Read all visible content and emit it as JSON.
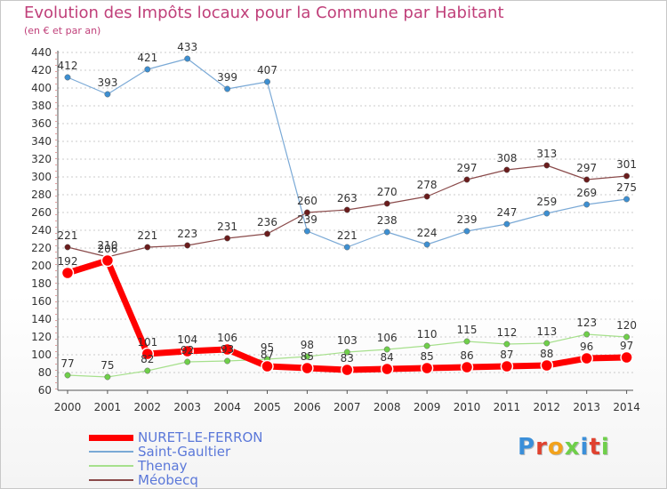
{
  "title": "Evolution des Impôts locaux pour la Commune par Habitant",
  "subtitle": "(en € et par an)",
  "logo_text": "Proxiti",
  "colors": {
    "title": "#c0407a",
    "legend_text": "#5b78d9",
    "grid": "#bbbbbb",
    "axis_text": "#333333"
  },
  "chart_data": {
    "type": "line",
    "title": "Evolution des Impôts locaux pour la Commune par Habitant",
    "subtitle": "(en € et par an)",
    "x": [
      "2000",
      "2001",
      "2002",
      "2003",
      "2004",
      "2005",
      "2006",
      "2007",
      "2008",
      "2009",
      "2010",
      "2011",
      "2012",
      "2013",
      "2014"
    ],
    "ylim": [
      60,
      440
    ],
    "yticks": [
      60,
      80,
      100,
      120,
      140,
      160,
      180,
      200,
      220,
      240,
      260,
      280,
      300,
      320,
      340,
      360,
      380,
      400,
      420,
      440
    ],
    "grid": "horizontal dashed",
    "legend_placement": "bottom-left",
    "series": [
      {
        "name": "Saint-Gaultier",
        "color": "#7aa9d6",
        "marker": "#3d8fd1",
        "width": 1.2,
        "values": [
          412,
          393,
          421,
          433,
          399,
          407,
          239,
          221,
          238,
          224,
          239,
          247,
          259,
          269,
          275
        ]
      },
      {
        "name": "Thenay",
        "color": "#a6e08c",
        "marker": "#6fcf4a",
        "width": 1.2,
        "values": [
          77,
          75,
          82,
          92,
          93,
          95,
          98,
          103,
          106,
          110,
          115,
          112,
          113,
          123,
          120
        ]
      },
      {
        "name": "Méobecq",
        "color": "#8a4a4a",
        "marker": "#6a1c1c",
        "width": 1.2,
        "values": [
          221,
          210,
          221,
          223,
          231,
          236,
          260,
          263,
          270,
          278,
          297,
          308,
          313,
          297,
          301
        ]
      },
      {
        "name": "NURET-LE-FERRON",
        "color": "#ff0000",
        "marker": "#ff0000",
        "width": 7,
        "values": [
          192,
          206,
          101,
          104,
          106,
          87,
          85,
          83,
          84,
          85,
          86,
          87,
          88,
          96,
          97
        ]
      }
    ]
  }
}
